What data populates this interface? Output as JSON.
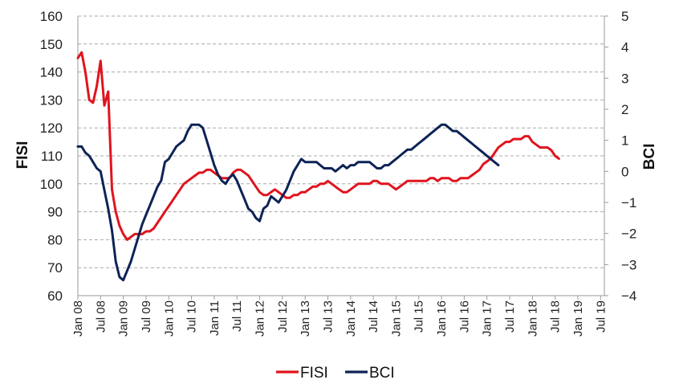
{
  "chart_data": {
    "type": "line",
    "title": "",
    "xlabel": "",
    "ylabel": "FISI",
    "y2label": "BCI",
    "ylim": [
      60,
      160
    ],
    "y2lim": [
      -4,
      5
    ],
    "yticks": [
      "60",
      "70",
      "80",
      "90",
      "100",
      "110",
      "120",
      "130",
      "140",
      "150",
      "160"
    ],
    "y2ticks": [
      "-4",
      "-3",
      "-2",
      "-1",
      "0",
      "1",
      "2",
      "3",
      "4",
      "5"
    ],
    "xticks": [
      "Jan 08",
      "Jul 08",
      "Jan 09",
      "Jul 09",
      "Jan 10",
      "Jul 10",
      "Jan 11",
      "Jul 11",
      "Jan 12",
      "Jul 12",
      "Jan 13",
      "Jul 13",
      "Jan 14",
      "Jul 14",
      "Jan 15",
      "Jul 15",
      "Jan 16",
      "Jul 16",
      "Jan 17",
      "Jul 17",
      "Jan 18",
      "Jul 18",
      "Jan 19",
      "Jul 19"
    ],
    "x_unit": "month",
    "x_start": "Jan 08",
    "grid": "horizontal dashed",
    "legend_position": "bottom",
    "series": [
      {
        "name": "FISI",
        "axis": "left",
        "color": "#e0141e",
        "values": [
          145,
          147,
          140,
          130,
          129,
          135,
          144,
          128,
          133,
          98,
          90,
          85,
          82,
          80,
          81,
          82,
          82,
          82,
          83,
          83,
          84,
          86,
          88,
          90,
          92,
          94,
          96,
          98,
          100,
          101,
          102,
          103,
          104,
          104,
          105,
          105,
          104,
          103,
          102,
          102,
          102,
          104,
          105,
          105,
          104,
          103,
          101,
          99,
          97,
          96,
          96,
          97,
          98,
          97,
          96,
          95,
          95,
          96,
          96,
          97,
          97,
          98,
          99,
          99,
          100,
          100,
          101,
          100,
          99,
          98,
          97,
          97,
          98,
          99,
          100,
          100,
          100,
          100,
          101,
          101,
          100,
          100,
          100,
          99,
          98,
          99,
          100,
          101,
          101,
          101,
          101,
          101,
          101,
          102,
          102,
          101,
          102,
          102,
          102,
          101,
          101,
          102,
          102,
          102,
          103,
          104,
          105,
          107,
          108,
          109,
          111,
          113,
          114,
          115,
          115,
          116,
          116,
          116,
          117,
          117,
          115,
          114,
          113,
          113,
          113,
          112,
          110,
          109
        ]
      },
      {
        "name": "BCI",
        "axis": "right",
        "color": "#0d2356",
        "values": [
          0.8,
          0.8,
          0.6,
          0.5,
          0.3,
          0.1,
          0.0,
          -0.6,
          -1.2,
          -1.9,
          -2.9,
          -3.4,
          -3.5,
          -3.2,
          -2.9,
          -2.5,
          -2.1,
          -1.7,
          -1.4,
          -1.1,
          -0.8,
          -0.5,
          -0.3,
          0.3,
          0.4,
          0.6,
          0.8,
          0.9,
          1.0,
          1.3,
          1.5,
          1.5,
          1.5,
          1.4,
          1.0,
          0.6,
          0.2,
          -0.1,
          -0.3,
          -0.4,
          -0.2,
          -0.1,
          -0.3,
          -0.6,
          -0.9,
          -1.2,
          -1.3,
          -1.5,
          -1.6,
          -1.2,
          -1.1,
          -0.8,
          -0.9,
          -1.0,
          -0.8,
          -0.6,
          -0.3,
          0.0,
          0.2,
          0.4,
          0.3,
          0.3,
          0.3,
          0.3,
          0.2,
          0.1,
          0.1,
          0.1,
          0.0,
          0.1,
          0.2,
          0.1,
          0.2,
          0.2,
          0.3,
          0.3,
          0.3,
          0.3,
          0.2,
          0.1,
          0.1,
          0.2,
          0.2,
          0.3,
          0.4,
          0.5,
          0.6,
          0.7,
          0.7,
          0.8,
          0.9,
          1.0,
          1.1,
          1.2,
          1.3,
          1.4,
          1.5,
          1.5,
          1.4,
          1.3,
          1.3,
          1.2,
          1.1,
          1.0,
          0.9,
          0.8,
          0.7,
          0.6,
          0.5,
          0.4,
          0.3,
          0.2
        ]
      }
    ]
  }
}
